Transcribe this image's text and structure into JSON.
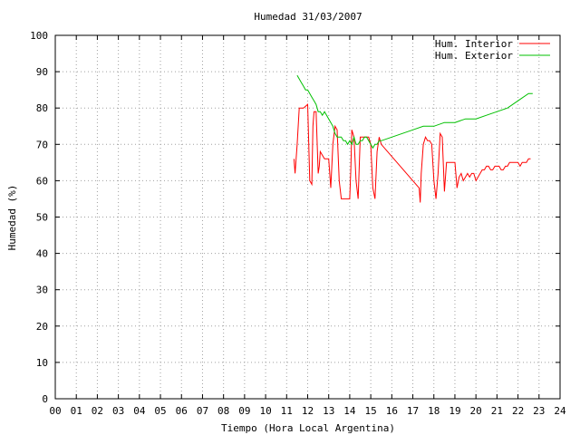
{
  "chart_data": {
    "type": "line",
    "title": "Humedad 31/03/2007",
    "xlabel": "Tiempo (Hora Local Argentina)",
    "ylabel": "Humedad (%)",
    "xlim": [
      0,
      24
    ],
    "ylim": [
      0,
      100
    ],
    "grid": true,
    "legend_position": "top-right",
    "x_ticks": [
      "00",
      "01",
      "02",
      "03",
      "04",
      "05",
      "06",
      "07",
      "08",
      "09",
      "10",
      "11",
      "12",
      "13",
      "14",
      "15",
      "16",
      "17",
      "18",
      "19",
      "20",
      "21",
      "22",
      "23",
      "24"
    ],
    "y_ticks": [
      0,
      10,
      20,
      30,
      40,
      50,
      60,
      70,
      80,
      90,
      100
    ],
    "series": [
      {
        "name": "Hum. Interior",
        "color": "#ff0000",
        "x": [
          11.35,
          11.4,
          11.5,
          11.6,
          11.7,
          11.8,
          12.0,
          12.1,
          12.2,
          12.25,
          12.3,
          12.4,
          12.5,
          12.55,
          12.6,
          12.7,
          12.8,
          12.9,
          13.0,
          13.1,
          13.2,
          13.3,
          13.4,
          13.5,
          13.6,
          13.7,
          13.8,
          13.9,
          14.0,
          14.05,
          14.1,
          14.2,
          14.3,
          14.4,
          14.5,
          14.7,
          14.9,
          15.0,
          15.1,
          15.2,
          15.3,
          15.4,
          15.5,
          17.3,
          17.35,
          17.4,
          17.5,
          17.6,
          17.7,
          17.8,
          17.9,
          18.0,
          18.1,
          18.2,
          18.3,
          18.4,
          18.5,
          18.6,
          18.7,
          18.8,
          19.0,
          19.1,
          19.2,
          19.3,
          19.4,
          19.5,
          19.6,
          19.7,
          19.8,
          19.9,
          20.0,
          20.1,
          20.2,
          20.3,
          20.4,
          20.5,
          20.6,
          20.7,
          20.8,
          20.9,
          21.0,
          21.1,
          21.2,
          21.3,
          21.4,
          21.5,
          21.6,
          21.7,
          21.8,
          21.9,
          22.0,
          22.1,
          22.2,
          22.3,
          22.4,
          22.5,
          22.6
        ],
        "y": [
          66,
          62,
          70,
          80,
          80,
          80,
          81,
          60,
          59,
          75,
          79,
          79,
          62,
          64,
          68,
          67,
          66,
          66,
          66,
          58,
          70,
          75,
          74,
          60,
          55,
          55,
          55,
          55,
          55,
          63,
          74,
          72,
          60,
          55,
          72,
          72,
          72,
          70,
          58,
          55,
          68,
          72,
          70,
          58,
          54,
          62,
          70,
          72,
          71,
          71,
          70,
          60,
          55,
          62,
          73,
          72,
          57,
          65,
          65,
          65,
          65,
          58,
          61,
          62,
          60,
          61,
          62,
          61,
          62,
          62,
          60,
          61,
          62,
          63,
          63,
          64,
          64,
          63,
          63,
          64,
          64,
          64,
          63,
          63,
          64,
          64,
          65,
          65,
          65,
          65,
          65,
          64,
          65,
          65,
          65,
          66,
          66
        ]
      },
      {
        "name": "Hum. Exterior",
        "color": "#00c000",
        "x": [
          11.5,
          11.6,
          11.7,
          11.8,
          11.9,
          12.0,
          12.1,
          12.2,
          12.3,
          12.4,
          12.5,
          12.6,
          12.7,
          12.8,
          12.9,
          13.0,
          13.1,
          13.2,
          13.3,
          13.4,
          13.5,
          13.6,
          13.7,
          13.8,
          13.9,
          14.0,
          14.1,
          14.2,
          14.3,
          14.4,
          14.5,
          14.6,
          14.7,
          14.8,
          14.9,
          15.0,
          15.1,
          15.2,
          15.3,
          15.4,
          15.5,
          16.0,
          16.5,
          17.0,
          17.5,
          18.0,
          18.5,
          19.0,
          19.5,
          20.0,
          20.5,
          21.0,
          21.5,
          22.0,
          22.5,
          22.7
        ],
        "y": [
          89,
          88,
          87,
          86,
          85,
          85,
          84,
          83,
          82,
          81,
          79,
          79,
          78,
          79,
          78,
          77,
          76,
          75,
          73,
          72,
          72,
          72,
          71,
          71,
          70,
          71,
          70,
          72,
          70,
          70,
          71,
          71,
          72,
          72,
          71,
          70,
          69,
          70,
          70,
          71,
          71,
          72,
          73,
          74,
          75,
          75,
          76,
          76,
          77,
          77,
          78,
          79,
          80,
          82,
          84,
          84
        ]
      }
    ]
  }
}
